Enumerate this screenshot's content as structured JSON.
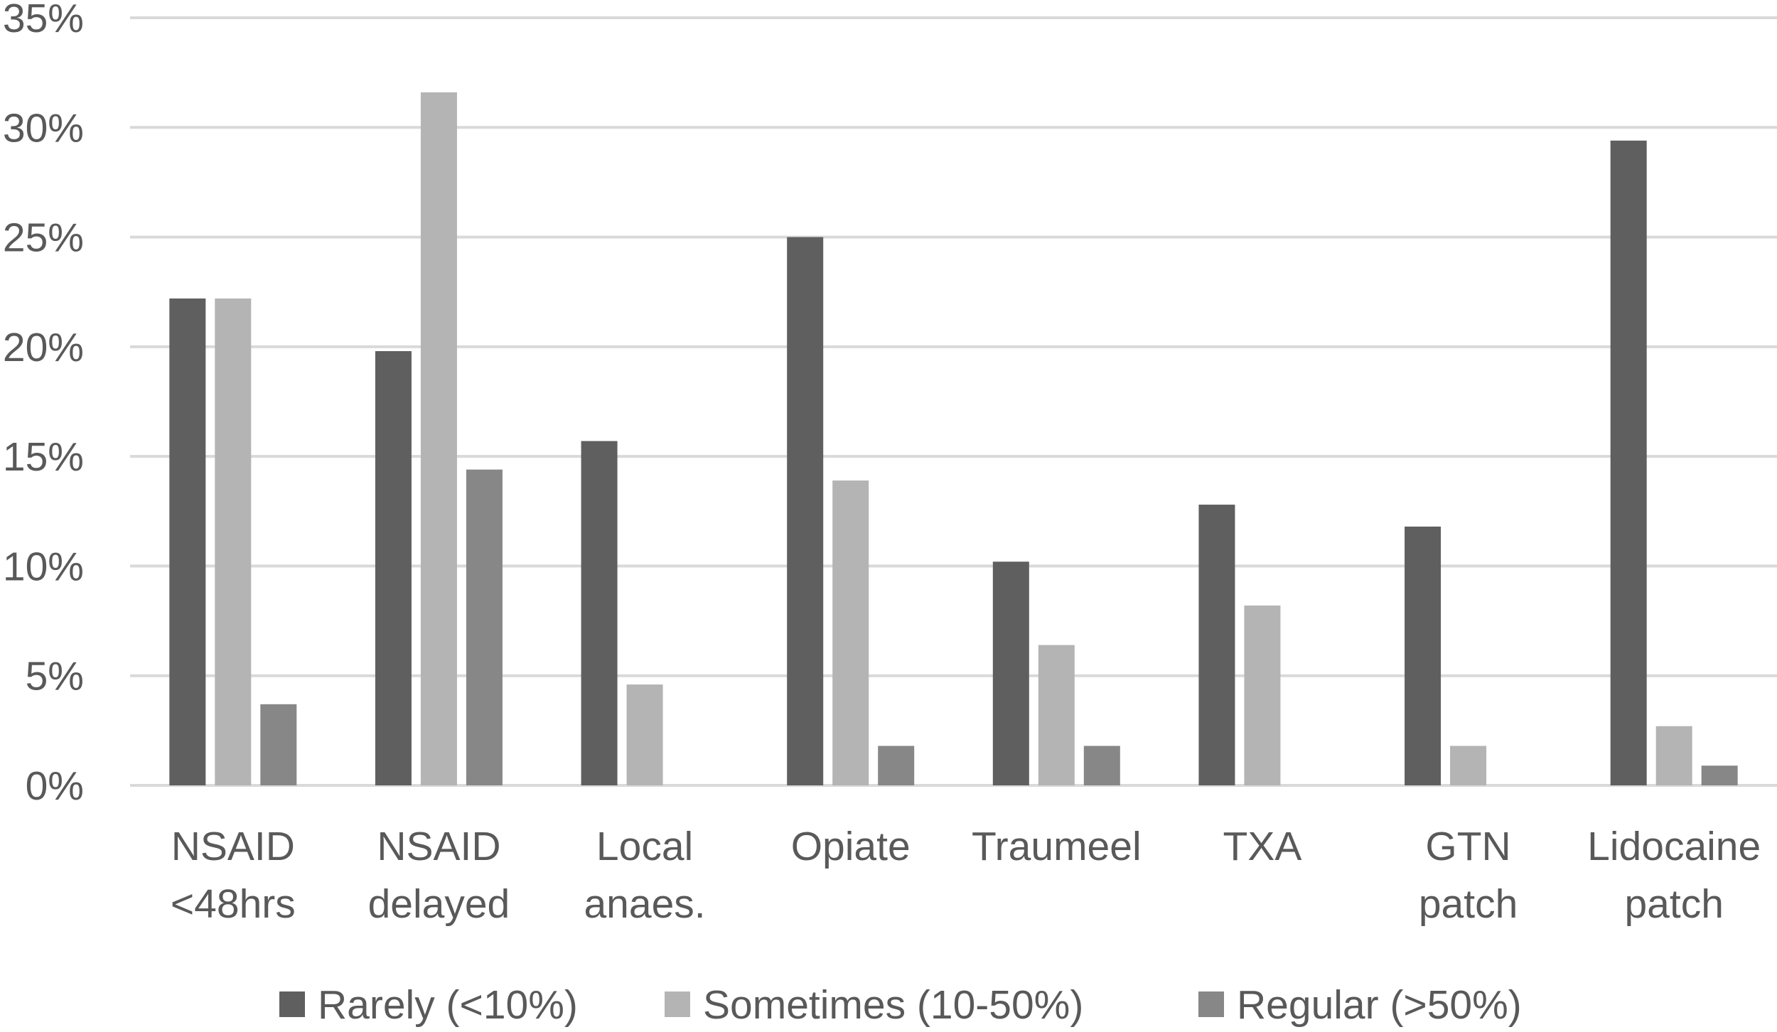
{
  "chart_data": {
    "type": "bar",
    "categories": [
      [
        "NSAID",
        "<48hrs"
      ],
      [
        "NSAID",
        "delayed"
      ],
      [
        "Local",
        "anaes."
      ],
      [
        "Opiate"
      ],
      [
        "Traumeel"
      ],
      [
        "TXA"
      ],
      [
        "GTN",
        "patch"
      ],
      [
        "Lidocaine",
        "patch"
      ]
    ],
    "series": [
      {
        "name": "Rarely (<10%)",
        "color": "#5f5f5f",
        "values": [
          22.2,
          19.8,
          15.7,
          25.0,
          10.2,
          12.8,
          11.8,
          29.4
        ]
      },
      {
        "name": "Sometimes (10-50%)",
        "color": "#b4b4b4",
        "values": [
          22.2,
          31.6,
          4.6,
          13.9,
          6.4,
          8.2,
          1.8,
          2.7
        ]
      },
      {
        "name": "Regular (>50%)",
        "color": "#878787",
        "values": [
          3.7,
          14.4,
          0,
          1.8,
          1.8,
          0,
          0,
          0.9
        ]
      }
    ],
    "yticks": [
      "0%",
      "5%",
      "10%",
      "15%",
      "20%",
      "25%",
      "30%",
      "35%"
    ],
    "ylim": [
      0,
      35
    ],
    "grid": true,
    "legend_position": "bottom",
    "title": "",
    "xlabel": "",
    "ylabel": ""
  }
}
